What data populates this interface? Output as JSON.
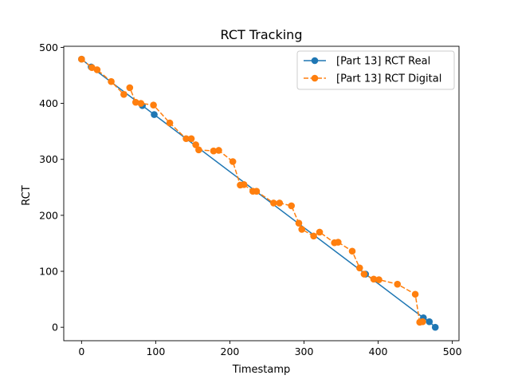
{
  "chart_data": {
    "type": "line",
    "title": "RCT Tracking",
    "xlabel": "Timestamp",
    "ylabel": "RCT",
    "xlim": [
      -24,
      509
    ],
    "ylim": [
      -24,
      502
    ],
    "xticks": [
      0,
      100,
      200,
      300,
      400,
      500
    ],
    "yticks": [
      0,
      100,
      200,
      300,
      400,
      500
    ],
    "grid": false,
    "legend_position": "top-right",
    "series": [
      {
        "name": "[Part 13] RCT Real",
        "color": "#1f77b4",
        "linestyle": "solid",
        "marker": "circle",
        "x": [
          0,
          13,
          82,
          98,
          383,
          461,
          469,
          477
        ],
        "y": [
          479,
          465,
          396,
          380,
          95,
          17,
          10,
          0
        ]
      },
      {
        "name": "[Part 13] RCT Digital",
        "color": "#ff7f0e",
        "linestyle": "dashed",
        "marker": "circle",
        "x": [
          0,
          14,
          21,
          40,
          57,
          65,
          73,
          80,
          97,
          119,
          141,
          148,
          154,
          158,
          178,
          185,
          204,
          214,
          219,
          231,
          236,
          259,
          267,
          283,
          293,
          297,
          313,
          321,
          341,
          346,
          365,
          375,
          381,
          394,
          401,
          426,
          450,
          456,
          460
        ],
        "y": [
          479,
          464,
          460,
          439,
          416,
          428,
          402,
          400,
          397,
          365,
          337,
          337,
          326,
          317,
          315,
          316,
          296,
          254,
          255,
          243,
          243,
          222,
          222,
          217,
          186,
          175,
          163,
          170,
          151,
          152,
          136,
          106,
          95,
          86,
          85,
          77,
          59,
          9,
          10
        ]
      }
    ]
  }
}
